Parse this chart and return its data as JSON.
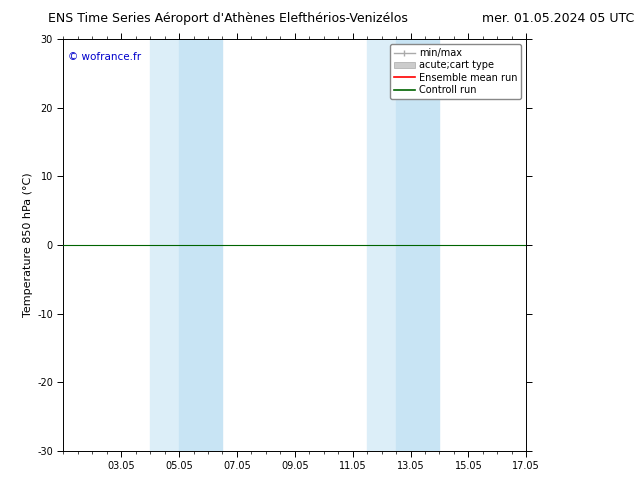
{
  "title_left": "ENS Time Series Aéroport d'Athènes Elefthérios-Venizélos",
  "title_right": "mer. 01.05.2024 05 UTC",
  "ylabel": "Temperature 850 hPa (°C)",
  "ylim": [
    -30,
    30
  ],
  "yticks": [
    -30,
    -20,
    -10,
    0,
    10,
    20,
    30
  ],
  "xlim_start": 0.0,
  "xlim_end": 16.0,
  "xtick_positions": [
    2,
    4,
    6,
    8,
    10,
    12,
    14,
    16
  ],
  "xtick_labels": [
    "03.05",
    "05.05",
    "07.05",
    "09.05",
    "11.05",
    "13.05",
    "15.05",
    "17.05"
  ],
  "shaded_bands": [
    {
      "xmin": 3.0,
      "xmax": 4.0,
      "color": "#dceef8"
    },
    {
      "xmin": 4.0,
      "xmax": 5.5,
      "color": "#c8e4f4"
    },
    {
      "xmin": 10.5,
      "xmax": 11.5,
      "color": "#dceef8"
    },
    {
      "xmin": 11.5,
      "xmax": 13.0,
      "color": "#c8e4f4"
    }
  ],
  "hline_y": 0,
  "hline_color": "#006400",
  "background_color": "#ffffff",
  "plot_bg_color": "#ffffff",
  "watermark": "© wofrance.fr",
  "watermark_color": "#0000cc",
  "legend_minmax_color": "#aaaaaa",
  "legend_acute_color": "#cccccc",
  "legend_ens_color": "#ff0000",
  "legend_ctrl_color": "#006400",
  "title_fontsize": 9,
  "axis_label_fontsize": 8,
  "tick_fontsize": 7,
  "legend_fontsize": 7
}
